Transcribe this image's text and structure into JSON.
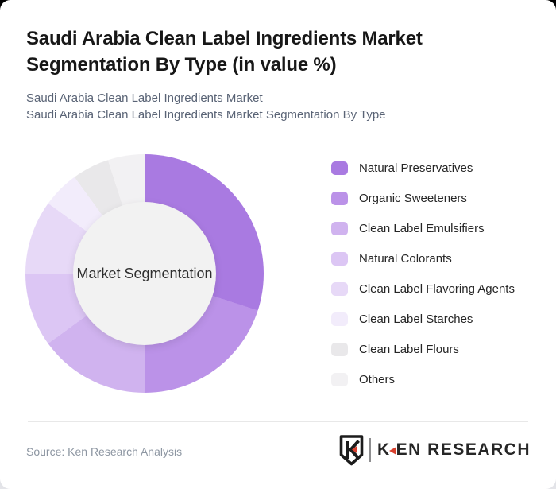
{
  "header": {
    "title_line1": "Saudi Arabia Clean Label Ingredients Market",
    "title_line2": "Segmentation By Type (in value %)",
    "subtitle_line1": "Saudi Arabia Clean Label Ingredients Market",
    "subtitle_line2": "Saudi Arabia Clean Label Ingredients Market Segmentation By Type"
  },
  "chart_data": {
    "type": "pie",
    "subtype": "donut",
    "title": "Saudi Arabia Clean Label Ingredients Market Segmentation By Type (in value %)",
    "center_label": "Market Segmentation",
    "unit": "%",
    "start_angle_deg": 0,
    "direction": "clockwise",
    "legend_position": "right",
    "categories": [
      "Natural Preservatives",
      "Organic Sweeteners",
      "Clean Label Emulsifiers",
      "Natural Colorants",
      "Clean Label Flavoring Agents",
      "Clean Label Starches",
      "Clean Label Flours",
      "Others"
    ],
    "values": [
      30,
      20,
      15,
      10,
      10,
      5,
      5,
      5
    ],
    "colors": [
      "#a97ae1",
      "#bb92e8",
      "#d0b3ef",
      "#dcc6f4",
      "#e7d9f7",
      "#f2ecfb",
      "#e9e8ea",
      "#f2f1f3"
    ],
    "center_fill": "#f2f2f2",
    "center_text_color": "#2e2e2e"
  },
  "footer": {
    "source_text": "Source: Ken Research Analysis"
  },
  "logo": {
    "text": "KEN RESEARCH",
    "badge_letter": "K",
    "accent_color": "#d8402e",
    "text_color": "#262626"
  }
}
